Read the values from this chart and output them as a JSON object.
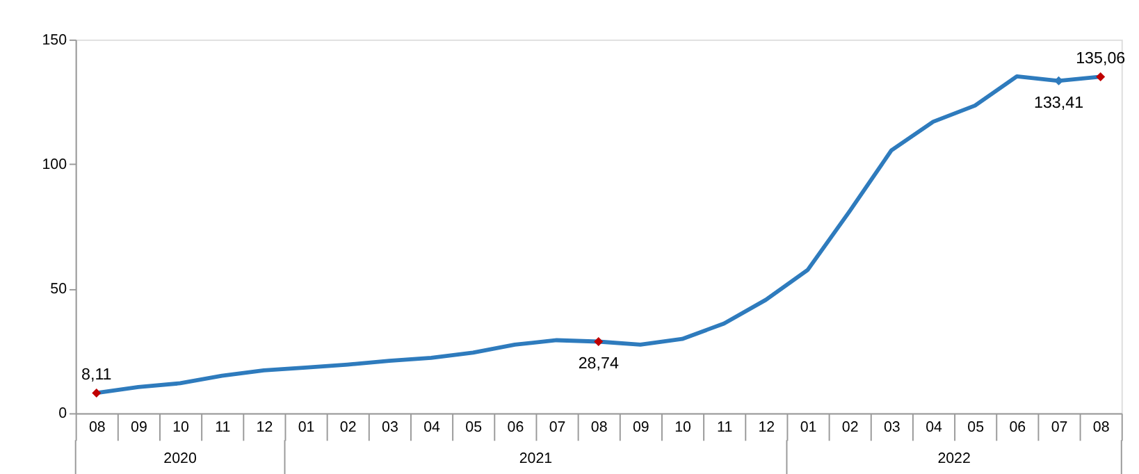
{
  "chart_data": {
    "type": "line",
    "categories": [
      "08",
      "09",
      "10",
      "11",
      "12",
      "01",
      "02",
      "03",
      "04",
      "05",
      "06",
      "07",
      "08",
      "09",
      "10",
      "11",
      "12",
      "01",
      "02",
      "03",
      "04",
      "05",
      "06",
      "07",
      "08"
    ],
    "series": [
      {
        "color": "#2e7bbd",
        "values": [
          8.11,
          10.5,
          12,
          15,
          17.2,
          18.3,
          19.5,
          21,
          22.2,
          24.3,
          27.5,
          29.3,
          28.74,
          27.5,
          29.8,
          36,
          45.5,
          57.5,
          81,
          105.5,
          117,
          123.5,
          135.2,
          133.41,
          135.06
        ],
        "value_labels": [
          "8,11",
          null,
          null,
          null,
          null,
          null,
          null,
          null,
          null,
          null,
          null,
          null,
          "28,74",
          null,
          null,
          null,
          null,
          null,
          null,
          null,
          null,
          null,
          null,
          "133,41",
          "135,06"
        ]
      },
      {
        "type": "scatter",
        "marker": "diamond",
        "values": [
          8.11,
          null,
          null,
          null,
          null,
          null,
          null,
          null,
          null,
          null,
          null,
          null,
          28.74,
          null,
          null,
          null,
          null,
          null,
          null,
          null,
          null,
          null,
          null,
          133.41,
          135.06
        ],
        "colors": [
          "#c00000",
          null,
          null,
          null,
          null,
          null,
          null,
          null,
          null,
          null,
          null,
          null,
          "#c00000",
          null,
          null,
          null,
          null,
          null,
          null,
          null,
          null,
          null,
          null,
          "#2e7bbd",
          "#c00000"
        ]
      }
    ],
    "annotations": [
      "2020",
      "2021",
      "2022"
    ],
    "ylim": [
      0,
      150
    ],
    "yticks": [
      0,
      50,
      100,
      150
    ],
    "grid": false,
    "line_style": "solid"
  }
}
